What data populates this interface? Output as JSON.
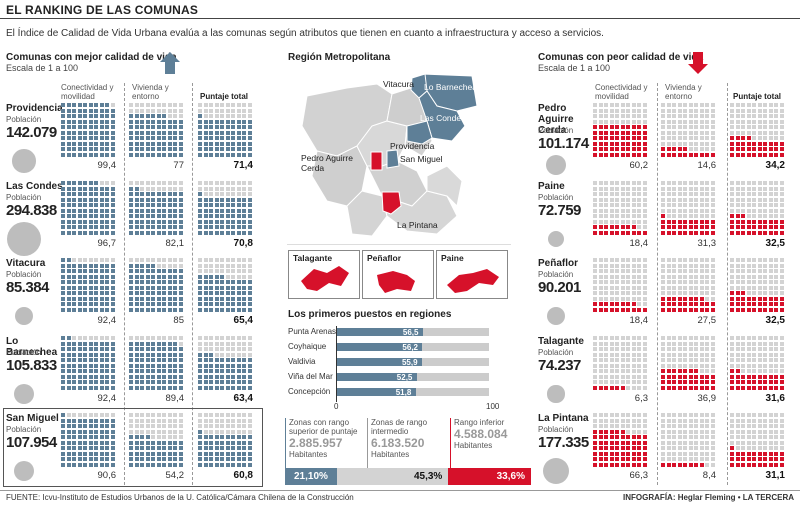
{
  "title": "EL RANKING DE LAS COMUNAS",
  "intro": "El Índice de Calidad de Vida Urbana evalúa a las comunas según atributos que tienen en cuanto a infraestructura y acceso a servicios.",
  "colors": {
    "best": "#5e7f97",
    "worst": "#d6112a",
    "empty": "#d3d3d3"
  },
  "left": {
    "heading": "Comunas con mejor calidad de vida",
    "scale": "Escala de 1 a 100",
    "col1": "Conectividad y movilidad",
    "col2": "Vivienda y entorno",
    "col3": "Puntaje total",
    "rows": [
      {
        "name": "Providencia",
        "pob": "Población",
        "pop": "142.079",
        "v1": "99,4",
        "v2": "77",
        "v3": "71,4",
        "n1": 99.4,
        "n2": 77,
        "n3": 71.4
      },
      {
        "name": "Las Condes",
        "pob": "Población",
        "pop": "294.838",
        "v1": "96,7",
        "v2": "82,1",
        "v3": "70,8",
        "n1": 96.7,
        "n2": 82.1,
        "n3": 70.8
      },
      {
        "name": "Vitacura",
        "pob": "Población",
        "pop": "85.384",
        "v1": "92,4",
        "v2": "85",
        "v3": "65,4",
        "n1": 92.4,
        "n2": 85,
        "n3": 65.4
      },
      {
        "name": "Lo Barnechea",
        "pob": "Población",
        "pop": "105.833",
        "v1": "92,4",
        "v2": "89,4",
        "v3": "63,4",
        "n1": 92.4,
        "n2": 89.4,
        "n3": 63.4
      },
      {
        "name": "San Miguel",
        "pob": "Población",
        "pop": "107.954",
        "v1": "90,6",
        "v2": "54,2",
        "v3": "60,8",
        "n1": 90.6,
        "n2": 54.2,
        "n3": 60.8
      }
    ]
  },
  "right": {
    "heading": "Comunas con peor calidad de vida",
    "scale": "Escala de 1 a 100",
    "col1": "Conectividad y movilidad",
    "col2": "Vivienda y entorno",
    "col3": "Puntaje total",
    "rows": [
      {
        "name": "Pedro Aguirre Cerda",
        "pob": "Población",
        "pop": "101.174",
        "v1": "60,2",
        "v2": "14,6",
        "v3": "34,2",
        "n1": 60.2,
        "n2": 14.6,
        "n3": 34.2
      },
      {
        "name": "Paine",
        "pob": "Población",
        "pop": "72.759",
        "v1": "18,4",
        "v2": "31,3",
        "v3": "32,5",
        "n1": 18.4,
        "n2": 31.3,
        "n3": 32.5
      },
      {
        "name": "Peñaflor",
        "pob": "Población",
        "pop": "90.201",
        "v1": "18,4",
        "v2": "27,5",
        "v3": "32,5",
        "n1": 18.4,
        "n2": 27.5,
        "n3": 32.5
      },
      {
        "name": "Talagante",
        "pob": "Población",
        "pop": "74.237",
        "v1": "6,3",
        "v2": "36,9",
        "v3": "31,6",
        "n1": 6.3,
        "n2": 36.9,
        "n3": 31.6
      },
      {
        "name": "La Pintana",
        "pob": "Población",
        "pop": "177.335",
        "v1": "66,3",
        "v2": "8,4",
        "v3": "31,1",
        "n1": 66.3,
        "n2": 8.4,
        "n3": 31.1
      }
    ]
  },
  "map": {
    "heading": "Región Metropolitana",
    "labels": {
      "vitacura": "Vitacura",
      "lobarnechea": "Lo Barnechea",
      "lascondes": "Las Condes",
      "providencia": "Providencia",
      "pac": "Pedro Aguirre Cerda",
      "sanmiguel": "San Miguel",
      "lapintana": "La Pintana"
    },
    "small": [
      "Talagante",
      "Peñaflor",
      "Paine"
    ]
  },
  "regions": {
    "heading": "Los primeros puestos en regiones",
    "axis": [
      "0",
      "100"
    ],
    "items": [
      {
        "name": "Punta Arenas",
        "label": "56,5",
        "value": 56.5
      },
      {
        "name": "Coyhaique",
        "label": "56,2",
        "value": 56.2
      },
      {
        "name": "Valdivia",
        "label": "55,9",
        "value": 55.9
      },
      {
        "name": "Viña del Mar",
        "label": "52,5",
        "value": 52.5
      },
      {
        "name": "Concepción",
        "label": "51,8",
        "value": 51.8
      }
    ]
  },
  "ranges": [
    {
      "label": "Zonas con rango superior de puntaje",
      "pop": "2.885.957",
      "hab": "Habitantes",
      "pct": "21,10%",
      "value": 21.1
    },
    {
      "label": "Zonas de rango intermedio",
      "pop": "6.183.520",
      "hab": "Habitantes",
      "pct": "45,3%",
      "value": 45.3
    },
    {
      "label": "Rango inferior",
      "pop": "4.588.084",
      "hab": "Habitantes",
      "pct": "33,6%",
      "value": 33.6
    }
  ],
  "footer": {
    "source": "FUENTE: Icvu-Instituto de Estudios Urbanos de la U. Católica/Cámara Chilena de la Construcción",
    "credit": "INFOGRAFÍA: Heglar Fleming • LA TERCERA"
  }
}
